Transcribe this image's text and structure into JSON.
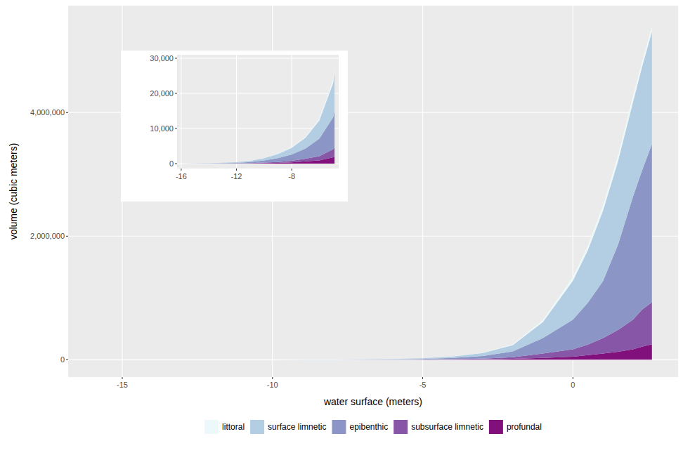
{
  "chart_data": [
    {
      "type": "area",
      "stacked": true,
      "grid": true,
      "legend": "bottom",
      "x_label": "water surface (meters)",
      "y_label": "volume (cubic meters)",
      "x": [
        -16,
        -14,
        -12,
        -11,
        -10,
        -9,
        -8,
        -7,
        -6,
        -5,
        -4.9,
        -4,
        -3,
        -2,
        -1,
        0,
        0.5,
        1,
        1.5,
        2,
        2.3,
        2.63
      ],
      "xlim": [
        -16.8,
        3.5
      ],
      "xticks": [
        -15,
        -10,
        -5,
        0
      ],
      "ylim": [
        -280000,
        5730000
      ],
      "yticks": [
        0,
        {
          "value": 2000000,
          "label": "2,000,000"
        },
        {
          "value": 4000000,
          "label": "4,000,000"
        }
      ],
      "series": [
        {
          "name": "littoral",
          "color": "#EDF8FB",
          "values": [
            0,
            5,
            20,
            40,
            70,
            130,
            200,
            320,
            520,
            1000,
            1200,
            2500,
            6000,
            14000,
            35000,
            60000,
            75000,
            90000,
            100000,
            100000,
            90000,
            80000
          ]
        },
        {
          "name": "surface limnetic",
          "color": "#B3CDE3",
          "values": [
            0,
            40,
            160,
            350,
            640,
            1200,
            1900,
            3100,
            5200,
            9800,
            11200,
            22000,
            47000,
            100000,
            260000,
            630000,
            850000,
            1140000,
            1350000,
            1530000,
            1680000,
            1820000
          ]
        },
        {
          "name": "epibenthic",
          "color": "#8C96C6",
          "values": [
            0,
            35,
            150,
            320,
            600,
            1100,
            1800,
            2900,
            5000,
            9100,
            10500,
            21000,
            44000,
            95000,
            250000,
            480000,
            680000,
            920000,
            1380000,
            1990000,
            2250000,
            2560000
          ]
        },
        {
          "name": "subsurface limnetic",
          "color": "#8856A7",
          "values": [
            0,
            10,
            35,
            80,
            150,
            270,
            450,
            750,
            1200,
            2300,
            2600,
            5000,
            10000,
            25000,
            70000,
            120000,
            170000,
            250000,
            350000,
            480000,
            600000,
            680000
          ]
        },
        {
          "name": "profundal",
          "color": "#810F7C",
          "values": [
            0,
            10,
            35,
            60,
            140,
            200,
            350,
            630,
            880,
            1800,
            2000,
            4000,
            8000,
            16000,
            30000,
            50000,
            75000,
            100000,
            130000,
            170000,
            210000,
            250000
          ]
        }
      ]
    },
    {
      "type": "area",
      "stacked": true,
      "grid": true,
      "x": [
        -16,
        -14,
        -12,
        -11,
        -10,
        -9,
        -8,
        -7,
        -6,
        -5,
        -4.9
      ],
      "xlim": [
        -16.3,
        -4.6
      ],
      "xticks": [
        -16,
        -12,
        -8
      ],
      "ylim": [
        -1400,
        31000
      ],
      "yticks": [
        0,
        {
          "value": 10000,
          "label": "10,000"
        },
        {
          "value": 20000,
          "label": "20,000"
        },
        {
          "value": 30000,
          "label": "30,000"
        }
      ],
      "series": [
        {
          "color": "#EDF8FB",
          "values": [
            0,
            5,
            20,
            40,
            70,
            130,
            200,
            320,
            520,
            1000,
            1200
          ]
        },
        {
          "color": "#B3CDE3",
          "values": [
            0,
            40,
            160,
            350,
            640,
            1200,
            1900,
            3100,
            5200,
            9800,
            11200
          ]
        },
        {
          "color": "#8C96C6",
          "values": [
            0,
            35,
            150,
            320,
            600,
            1100,
            1800,
            2900,
            5000,
            9100,
            10500
          ]
        },
        {
          "color": "#8856A7",
          "values": [
            0,
            10,
            35,
            80,
            150,
            270,
            450,
            750,
            1200,
            2300,
            2600
          ]
        },
        {
          "color": "#810F7C",
          "values": [
            0,
            10,
            35,
            60,
            140,
            200,
            350,
            630,
            880,
            1800,
            2000
          ]
        }
      ]
    }
  ]
}
